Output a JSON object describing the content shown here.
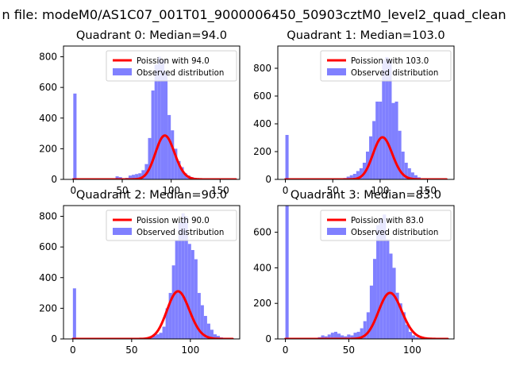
{
  "chart_data": {
    "type": "histogram-grid",
    "suptitle": "n file: modeM0/AS1C07_001T01_9000006450_50903cztM0_level2_quad_clean",
    "legend_placement": "upper right",
    "colors": {
      "poisson_line": "#ff0000",
      "observed_bars": "#8080ff",
      "axes": "#000000",
      "background": "#ffffff"
    },
    "panels": [
      {
        "title": "Quadrant 0: Median=94.0",
        "legend": [
          "Poission with 94.0",
          "Observed distribution"
        ],
        "xlim": [
          -10,
          170
        ],
        "ylim": [
          0,
          870
        ],
        "xticks": [
          0,
          50,
          100,
          150
        ],
        "xtick_labels": [
          "0",
          "50",
          "100",
          "150"
        ],
        "yticks": [
          0,
          200,
          400,
          600,
          800
        ],
        "ytick_labels": [
          "0",
          "200",
          "400",
          "600",
          "800"
        ],
        "line": {
          "mean": 94.0,
          "scale": 6960,
          "range": [
            0,
            166
          ]
        },
        "bars": {
          "bin_width": 3.32,
          "start": 0,
          "counts": [
            560,
            0,
            0,
            0,
            0,
            0,
            0,
            0,
            0,
            0,
            0,
            0,
            0,
            20,
            15,
            5,
            10,
            25,
            30,
            35,
            40,
            60,
            100,
            270,
            580,
            750,
            800,
            780,
            700,
            420,
            320,
            200,
            120,
            80,
            40,
            25,
            15,
            8,
            5,
            3,
            2,
            1,
            0,
            0,
            0,
            0,
            0,
            0,
            0,
            0
          ]
        }
      },
      {
        "title": "Quadrant 1: Median=103.0",
        "legend": [
          "Poission with 103.0",
          "Observed distribution"
        ],
        "xlim": [
          -8,
          178
        ],
        "ylim": [
          0,
          960
        ],
        "xticks": [
          0,
          50,
          100,
          150
        ],
        "xtick_labels": [
          "0",
          "50",
          "100",
          "150"
        ],
        "yticks": [
          0,
          200,
          400,
          600,
          800
        ],
        "ytick_labels": [
          "0",
          "200",
          "400",
          "600",
          "800"
        ],
        "line": {
          "mean": 103.0,
          "scale": 7710,
          "range": [
            0,
            170
          ]
        },
        "bars": {
          "bin_width": 3.4,
          "start": 0,
          "counts": [
            320,
            0,
            0,
            0,
            0,
            0,
            0,
            0,
            0,
            0,
            0,
            0,
            0,
            0,
            0,
            0,
            0,
            0,
            10,
            20,
            30,
            40,
            60,
            80,
            120,
            200,
            310,
            420,
            560,
            560,
            860,
            880,
            860,
            550,
            560,
            350,
            200,
            120,
            80,
            50,
            30,
            15,
            8,
            4,
            2,
            1,
            0,
            0,
            0,
            0
          ]
        }
      },
      {
        "title": "Quadrant 2: Median=90.0",
        "legend": [
          "Poission with 90.0",
          "Observed distribution"
        ],
        "xlim": [
          -8,
          142
        ],
        "ylim": [
          0,
          870
        ],
        "xticks": [
          0,
          50,
          100
        ],
        "xtick_labels": [
          "0",
          "50",
          "100"
        ],
        "yticks": [
          0,
          200,
          400,
          600,
          800
        ],
        "ytick_labels": [
          "0",
          "200",
          "400",
          "600",
          "800"
        ],
        "line": {
          "mean": 90.0,
          "scale": 7390,
          "range": [
            0,
            136
          ]
        },
        "bars": {
          "bin_width": 2.72,
          "start": 0,
          "counts": [
            330,
            0,
            0,
            0,
            0,
            0,
            0,
            0,
            0,
            0,
            0,
            0,
            0,
            0,
            0,
            0,
            0,
            0,
            0,
            0,
            0,
            0,
            0,
            5,
            10,
            20,
            30,
            40,
            80,
            200,
            300,
            480,
            640,
            760,
            820,
            800,
            620,
            580,
            520,
            300,
            220,
            150,
            100,
            60,
            30,
            20,
            10,
            5,
            2,
            1
          ]
        }
      },
      {
        "title": "Quadrant 3: Median=83.0",
        "legend": [
          "Poission with 83.0",
          "Observed distribution"
        ],
        "xlim": [
          -6,
          133
        ],
        "ylim": [
          0,
          750
        ],
        "xticks": [
          0,
          50,
          100
        ],
        "xtick_labels": [
          "0",
          "50",
          "100"
        ],
        "yticks": [
          0,
          200,
          400,
          600
        ],
        "ytick_labels": [
          "0",
          "200",
          "400",
          "600"
        ],
        "line": {
          "mean": 83.0,
          "scale": 5920,
          "range": [
            0,
            128
          ]
        },
        "bars": {
          "bin_width": 2.56,
          "start": 0,
          "counts": [
            750,
            0,
            0,
            0,
            0,
            0,
            0,
            0,
            0,
            5,
            10,
            20,
            15,
            25,
            35,
            40,
            30,
            20,
            15,
            25,
            20,
            35,
            40,
            60,
            100,
            150,
            300,
            450,
            640,
            680,
            700,
            560,
            480,
            400,
            260,
            200,
            150,
            80,
            40,
            20,
            10,
            5,
            2,
            1,
            0,
            0,
            0,
            0,
            0,
            0
          ]
        }
      }
    ]
  }
}
